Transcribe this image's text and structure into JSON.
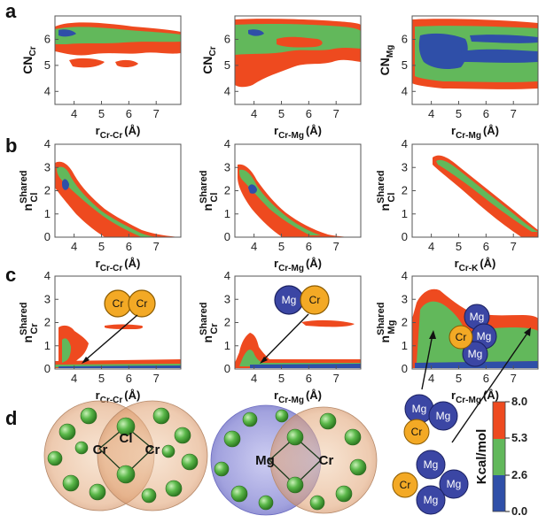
{
  "panel_letters": [
    "a",
    "b",
    "c",
    "d"
  ],
  "row_a": {
    "xticks": [
      "4",
      "5",
      "6",
      "7"
    ],
    "yticks": [
      "4",
      "5",
      "6"
    ],
    "plots": [
      {
        "ylabel": "CN",
        "ylabel_sub": "Cr",
        "xlabel": "r",
        "xlabel_sub": "Cr-Cr",
        "xlabel_unit": "(Å)"
      },
      {
        "ylabel": "CN",
        "ylabel_sub": "Cr",
        "xlabel": "r",
        "xlabel_sub": "Cr-Mg",
        "xlabel_unit": "(Å)"
      },
      {
        "ylabel": "CN",
        "ylabel_sub": "Mg",
        "xlabel": "r",
        "xlabel_sub": "Cr-Mg",
        "xlabel_unit": "(Å)"
      }
    ]
  },
  "row_b": {
    "xticks": [
      "4",
      "5",
      "6",
      "7"
    ],
    "yticks": [
      "0",
      "1",
      "2",
      "3",
      "4"
    ],
    "plots": [
      {
        "ylabel": "n",
        "ylabel_sup": "Shared",
        "ylabel_sub": "Cl",
        "xlabel": "r",
        "xlabel_sub": "Cr-Cr",
        "xlabel_unit": "(Å)"
      },
      {
        "ylabel": "n",
        "ylabel_sup": "Shared",
        "ylabel_sub": "Cl",
        "xlabel": "r",
        "xlabel_sub": "Cr-Mg",
        "xlabel_unit": "(Å)"
      },
      {
        "ylabel": "n",
        "ylabel_sup": "Shared",
        "ylabel_sub": "Cl",
        "xlabel": "r",
        "xlabel_sub": "Cr-K",
        "xlabel_unit": "(Å)"
      }
    ]
  },
  "row_c": {
    "xticks": [
      "4",
      "5",
      "6",
      "7"
    ],
    "yticks": [
      "0",
      "1",
      "2",
      "3",
      "4"
    ],
    "plots": [
      {
        "ylabel": "n",
        "ylabel_sup": "Shared",
        "ylabel_sub": "Cr",
        "xlabel": "r",
        "xlabel_sub": "Cr-Cr",
        "xlabel_unit": "(Å)"
      },
      {
        "ylabel": "n",
        "ylabel_sup": "Shared",
        "ylabel_sub": "Cr",
        "xlabel": "r",
        "xlabel_sub": "Cr-Mg",
        "xlabel_unit": "(Å)"
      },
      {
        "ylabel": "n",
        "ylabel_sup": "Shared",
        "ylabel_sub": "Mg",
        "xlabel": "r",
        "xlabel_sub": "Cr-Mg",
        "xlabel_unit": "(Å)"
      }
    ]
  },
  "atoms": {
    "cr": "Cr",
    "mg": "Mg",
    "cl": "Cl"
  },
  "colorbar": {
    "title": "Kcal/mol",
    "ticks": [
      "0.0",
      "2.6",
      "5.3",
      "8.0"
    ],
    "colors": [
      "#2f4fa8",
      "#62b85b",
      "#ee4a1f"
    ]
  },
  "colors": {
    "red": "#ee4a1f",
    "green": "#62b85b",
    "blue": "#2f4fa8",
    "cr_atom": "#f3a925",
    "mg_atom": "#3b46a4",
    "cl_atom": "#55b04a"
  }
}
